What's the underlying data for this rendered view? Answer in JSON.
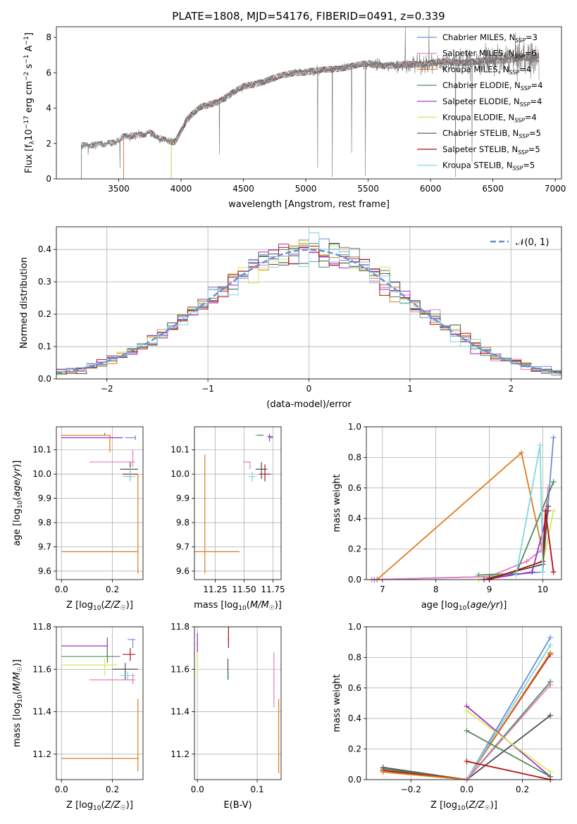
{
  "page_title": "PLATE=1808, MJD=54176, FIBERID=0491, z=0.339",
  "colors": {
    "Chabrier MILES": "#6a8fd8",
    "Salpeter MILES": "#e47fbf",
    "Kroupa MILES": "#e07b20",
    "Chabrier ELODIE": "#4f8a5c",
    "Salpeter ELODIE": "#9b30c7",
    "Kroupa ELODIE": "#d6ea5a",
    "Chabrier STELIB": "#505050",
    "Salpeter STELIB": "#b01010",
    "Kroupa STELIB": "#7fd8e0",
    "gaussian": "#6a8fd8",
    "spectrum": "#777777"
  },
  "chart_data": [
    {
      "id": "spectrum",
      "type": "line",
      "title": "PLATE=1808, MJD=54176, FIBERID=0491, z=0.339",
      "xlabel": "wavelength [Angstrom, rest frame]",
      "ylabel": "Flux [f_λ 10^-17 erg cm^-2 s^-1 A^-1]",
      "xlim": [
        3000,
        7050
      ],
      "ylim": [
        0,
        8.6
      ],
      "xticks": [
        3500,
        4000,
        4500,
        5000,
        5500,
        6000,
        6500,
        7000
      ],
      "yticks": [
        0,
        2,
        4,
        6,
        8
      ],
      "grid": false,
      "legend_position": "top-right",
      "legend": [
        {
          "label": "Chabrier MILES",
          "nssp": "3",
          "key": "Chabrier MILES"
        },
        {
          "label": "Salpeter MILES",
          "nssp": "6",
          "key": "Salpeter MILES"
        },
        {
          "label": "Kroupa MILES",
          "nssp": "4",
          "key": "Kroupa MILES"
        },
        {
          "label": "Chabrier ELODIE",
          "nssp": "4",
          "key": "Chabrier ELODIE"
        },
        {
          "label": "Salpeter ELODIE",
          "nssp": "4",
          "key": "Salpeter ELODIE"
        },
        {
          "label": "Kroupa ELODIE",
          "nssp": "4",
          "key": "Kroupa ELODIE"
        },
        {
          "label": "Chabrier STELIB",
          "nssp": "5",
          "key": "Chabrier STELIB"
        },
        {
          "label": "Salpeter STELIB",
          "nssp": "5",
          "key": "Salpeter STELIB"
        },
        {
          "label": "Kroupa STELIB",
          "nssp": "5",
          "key": "Kroupa STELIB"
        }
      ],
      "data_range": [
        3200,
        6870
      ],
      "continuum": [
        [
          3200,
          1.85
        ],
        [
          3350,
          2.0
        ],
        [
          3450,
          2.0
        ],
        [
          3550,
          2.4
        ],
        [
          3650,
          2.5
        ],
        [
          3750,
          2.6
        ],
        [
          3850,
          2.2
        ],
        [
          3950,
          2.1
        ],
        [
          4050,
          3.4
        ],
        [
          4150,
          4.0
        ],
        [
          4300,
          4.4
        ],
        [
          4500,
          5.2
        ],
        [
          4700,
          5.6
        ],
        [
          4900,
          6.0
        ],
        [
          5100,
          6.1
        ],
        [
          5300,
          6.3
        ],
        [
          5500,
          6.5
        ],
        [
          5700,
          6.4
        ],
        [
          5900,
          6.5
        ],
        [
          6100,
          6.6
        ],
        [
          6300,
          6.6
        ],
        [
          6500,
          6.7
        ],
        [
          6700,
          6.8
        ],
        [
          6870,
          6.8
        ]
      ],
      "model_starts": {
        "MILES": 3540,
        "ELODIE": 3920,
        "STELIB": 3200
      }
    },
    {
      "id": "residual_hist",
      "type": "histogram",
      "xlabel": "(data-model)/error",
      "ylabel": "Normed distribution",
      "xlim": [
        -2.5,
        2.5
      ],
      "ylim": [
        0,
        0.47
      ],
      "xticks": [
        -2,
        -1,
        0,
        1,
        2
      ],
      "yticks": [
        0,
        0.1,
        0.2,
        0.3,
        0.4
      ],
      "grid": true,
      "legend": "𝒩(0, 1)",
      "legend_position": "top-right",
      "bin_width": 0.1,
      "series_keys": [
        "Chabrier MILES",
        "Salpeter MILES",
        "Kroupa MILES",
        "Chabrier ELODIE",
        "Salpeter ELODIE",
        "Kroupa ELODIE",
        "Chabrier STELIB",
        "Salpeter STELIB",
        "Kroupa STELIB"
      ]
    },
    {
      "id": "age_vs_Z",
      "type": "scatter",
      "xlabel": "Z [log10(Z/Z☉)]",
      "ylabel": "age  [log10(age/yr)]",
      "xlim": [
        -0.02,
        0.32
      ],
      "ylim": [
        9.565,
        10.195
      ],
      "xticks": [
        0.0,
        0.2
      ],
      "yticks": [
        9.6,
        9.7,
        9.8,
        9.9,
        10.0,
        10.1
      ],
      "grid": true,
      "points": [
        {
          "key": "Kroupa ELODIE",
          "x": 0.17,
          "y": 10.16,
          "ex": [
            0.17,
            0.0
          ],
          "ey": [
            0,
            0
          ]
        },
        {
          "key": "Chabrier ELODIE",
          "x": 0.17,
          "y": 10.16,
          "ex": [
            0.17,
            0.0
          ],
          "ey": [
            0,
            0.01
          ]
        },
        {
          "key": "Salpeter ELODIE",
          "x": 0.19,
          "y": 10.15,
          "ex": [
            0.19,
            0.05
          ],
          "ey": [
            0,
            0.01
          ]
        },
        {
          "key": "Kroupa MILES",
          "x": 0.19,
          "y": 10.16,
          "ex": [
            0.19,
            0.0
          ],
          "ey": [
            0.07,
            0
          ]
        },
        {
          "key": "Chabrier MILES",
          "x": 0.29,
          "y": 10.15,
          "ex": [
            0.04,
            0.0
          ],
          "ey": [
            0.01,
            0.01
          ]
        },
        {
          "key": "Salpeter MILES",
          "x": 0.28,
          "y": 10.05,
          "ex": [
            0.17,
            0.01
          ],
          "ey": [
            0.02,
            0.05
          ]
        },
        {
          "key": "Chabrier STELIB",
          "x": 0.27,
          "y": 10.02,
          "ex": [
            0.04,
            0.03
          ],
          "ey": [
            0.04,
            0.03
          ]
        },
        {
          "key": "Salpeter STELIB",
          "x": 0.27,
          "y": 10.0,
          "ex": [
            0.03,
            0.03
          ],
          "ey": [
            0.03,
            0.04
          ]
        },
        {
          "key": "Kroupa STELIB",
          "x": 0.27,
          "y": 9.99,
          "ex": [
            0.03,
            0.02
          ],
          "ey": [
            0.02,
            0.04
          ]
        },
        {
          "key": "Kroupa MILES",
          "x": 0.3,
          "y": 9.68,
          "ex": [
            0.3,
            0.0
          ],
          "ey": [
            0.09,
            0.32
          ]
        }
      ]
    },
    {
      "id": "age_vs_mass",
      "type": "scatter",
      "xlabel": "mass [log10(M/M☉)]",
      "ylabel": "",
      "xlim": [
        11.07,
        11.82
      ],
      "ylim": [
        9.565,
        10.195
      ],
      "xticks": [
        11.25,
        11.5,
        11.75
      ],
      "yticks": [
        9.6,
        9.7,
        9.8,
        9.9,
        10.0,
        10.1
      ],
      "grid": true,
      "points": [
        {
          "key": "Kroupa ELODIE",
          "x": 11.62,
          "y": 10.16,
          "ex": [
            0.03,
            0.03
          ],
          "ey": [
            0.0,
            0.0
          ]
        },
        {
          "key": "Chabrier ELODIE",
          "x": 11.64,
          "y": 10.16,
          "ex": [
            0.03,
            0.03
          ],
          "ey": [
            0.0,
            0.0
          ]
        },
        {
          "key": "Salpeter ELODIE",
          "x": 11.72,
          "y": 10.155,
          "ex": [
            0.02,
            0.03
          ],
          "ey": [
            0.02,
            0.01
          ]
        },
        {
          "key": "Chabrier MILES",
          "x": 11.72,
          "y": 10.15,
          "ex": [
            0.01,
            0.03
          ],
          "ey": [
            0.0,
            0.0
          ]
        },
        {
          "key": "Salpeter MILES",
          "x": 11.55,
          "y": 10.05,
          "ex": [
            0.06,
            0.0
          ],
          "ey": [
            0.03,
            0.0
          ]
        },
        {
          "key": "Chabrier STELIB",
          "x": 11.65,
          "y": 10.02,
          "ex": [
            0.05,
            0.05
          ],
          "ey": [
            0.04,
            0.03
          ]
        },
        {
          "key": "Salpeter STELIB",
          "x": 11.68,
          "y": 10.0,
          "ex": [
            0.05,
            0.05
          ],
          "ey": [
            0.03,
            0.04
          ]
        },
        {
          "key": "Kroupa STELIB",
          "x": 11.57,
          "y": 9.99,
          "ex": [
            0.03,
            0.03
          ],
          "ey": [
            0.02,
            0.02
          ]
        },
        {
          "key": "Kroupa MILES",
          "x": 11.16,
          "y": 9.68,
          "ex": [
            0.1,
            0.3
          ],
          "ey": [
            0.09,
            0.4
          ]
        }
      ]
    },
    {
      "id": "mass_weight_vs_age",
      "type": "line",
      "xlabel": "age  [log10(age/yr)]",
      "ylabel": "mass weight",
      "xlim": [
        6.7,
        10.35
      ],
      "ylim": [
        0,
        1.0
      ],
      "xticks": [
        7,
        8,
        9,
        10
      ],
      "yticks": [
        0.0,
        0.2,
        0.4,
        0.6,
        0.8,
        1.0
      ],
      "grid": true,
      "series": [
        {
          "key": "Kroupa MILES",
          "x": [
            6.9,
            9.6,
            10.0,
            10.1
          ],
          "y": [
            0.0,
            0.83,
            0.18,
            0.48
          ]
        },
        {
          "key": "Chabrier MILES",
          "x": [
            6.85,
            9.0,
            10.0,
            10.2
          ],
          "y": [
            0.0,
            0.02,
            0.05,
            0.93
          ]
        },
        {
          "key": "Salpeter MILES",
          "x": [
            6.8,
            9.0,
            9.7,
            10.0,
            10.1
          ],
          "y": [
            0.0,
            0.02,
            0.12,
            0.2,
            0.6
          ]
        },
        {
          "key": "Chabrier ELODIE",
          "x": [
            8.8,
            9.5,
            10.2
          ],
          "y": [
            0.03,
            0.04,
            0.64
          ]
        },
        {
          "key": "Kroupa ELODIE",
          "x": [
            8.8,
            9.2,
            10.0,
            10.2
          ],
          "y": [
            0.0,
            0.03,
            0.1,
            0.45
          ]
        },
        {
          "key": "Salpeter ELODIE",
          "x": [
            8.9,
            9.8,
            10.1
          ],
          "y": [
            0.0,
            0.05,
            0.45
          ]
        },
        {
          "key": "Chabrier STELIB",
          "x": [
            9.0,
            10.0,
            10.1
          ],
          "y": [
            0.01,
            0.1,
            0.48
          ]
        },
        {
          "key": "Salpeter STELIB",
          "x": [
            9.0,
            10.0,
            10.05,
            10.2
          ],
          "y": [
            0.0,
            0.12,
            0.45,
            0.05
          ]
        },
        {
          "key": "Kroupa STELIB",
          "x": [
            9.5,
            9.95,
            10.0
          ],
          "y": [
            0.03,
            0.88,
            0.05
          ]
        }
      ]
    },
    {
      "id": "mass_vs_Z",
      "type": "scatter",
      "xlabel": "Z [log10(Z/Z☉)]",
      "ylabel": "mass [log10(M/M☉)]",
      "xlim": [
        -0.02,
        0.32
      ],
      "ylim": [
        11.08,
        11.8
      ],
      "xticks": [
        0.0,
        0.2
      ],
      "yticks": [
        11.2,
        11.4,
        11.6,
        11.8
      ],
      "grid": true,
      "points": [
        {
          "key": "Salpeter ELODIE",
          "x": 0.18,
          "y": 11.71,
          "ex": [
            0.18,
            0.0
          ],
          "ey": [
            0.05,
            0.04
          ]
        },
        {
          "key": "Chabrier MILES",
          "x": 0.28,
          "y": 11.74,
          "ex": [
            0.02,
            0.01
          ],
          "ey": [
            0.04,
            0.0
          ]
        },
        {
          "key": "Salpeter STELIB",
          "x": 0.27,
          "y": 11.67,
          "ex": [
            0.03,
            0.02
          ],
          "ey": [
            0.03,
            0.03
          ]
        },
        {
          "key": "Chabrier ELODIE",
          "x": 0.18,
          "y": 11.66,
          "ex": [
            0.18,
            0.05
          ],
          "ey": [
            0.03,
            0.04
          ]
        },
        {
          "key": "Chabrier STELIB",
          "x": 0.25,
          "y": 11.6,
          "ex": [
            0.05,
            0.05
          ],
          "ey": [
            0.05,
            0.03
          ]
        },
        {
          "key": "Kroupa ELODIE",
          "x": 0.17,
          "y": 11.62,
          "ex": [
            0.17,
            0.05
          ],
          "ey": [
            0.05,
            0.03
          ]
        },
        {
          "key": "Kroupa STELIB",
          "x": 0.26,
          "y": 11.57,
          "ex": [
            0.03,
            0.03
          ],
          "ey": [
            0.02,
            0.02
          ]
        },
        {
          "key": "Salpeter MILES",
          "x": 0.28,
          "y": 11.55,
          "ex": [
            0.17,
            0.01
          ],
          "ey": [
            0.02,
            0.03
          ]
        },
        {
          "key": "Kroupa MILES",
          "x": 0.3,
          "y": 11.18,
          "ex": [
            0.3,
            0.0
          ],
          "ey": [
            0.06,
            0.28
          ]
        }
      ]
    },
    {
      "id": "mass_vs_EBV",
      "type": "scatter",
      "xlabel": "E(B-V)",
      "ylabel": "",
      "xlim": [
        -0.005,
        0.14
      ],
      "ylim": [
        11.08,
        11.8
      ],
      "xticks": [
        0.0,
        0.1
      ],
      "yticks": [
        11.2,
        11.4,
        11.6,
        11.8
      ],
      "grid": true,
      "points": [
        {
          "key": "Salpeter ELODIE",
          "x": 0.0,
          "y": 11.72,
          "ex": [
            0,
            0
          ],
          "ey": [
            0.04,
            0.05
          ]
        },
        {
          "key": "Kroupa ELODIE",
          "x": 0.0,
          "y": 11.62,
          "ex": [
            0,
            0
          ],
          "ey": [
            0.06,
            0.06
          ]
        },
        {
          "key": "Salpeter STELIB",
          "x": 0.052,
          "y": 11.74,
          "ex": [
            0,
            0
          ],
          "ey": [
            0.04,
            0.06
          ]
        },
        {
          "key": "Chabrier STELIB",
          "x": 0.051,
          "y": 11.6,
          "ex": [
            0,
            0
          ],
          "ey": [
            0.05,
            0.05
          ]
        },
        {
          "key": "Kroupa STELIB",
          "x": 0.052,
          "y": 11.57,
          "ex": [
            0,
            0
          ],
          "ey": [
            0.02,
            0.02
          ]
        },
        {
          "key": "Salpeter MILES",
          "x": 0.128,
          "y": 11.55,
          "ex": [
            0,
            0
          ],
          "ey": [
            0.13,
            0.13
          ]
        },
        {
          "key": "Kroupa MILES",
          "x": 0.136,
          "y": 11.28,
          "ex": [
            0,
            0
          ],
          "ey": [
            0.17,
            0.18
          ]
        }
      ]
    },
    {
      "id": "mass_weight_vs_Z",
      "type": "line",
      "xlabel": "Z [log10(Z/Z☉)]",
      "ylabel": "mass weight",
      "xlim": [
        -0.36,
        0.34
      ],
      "ylim": [
        0,
        1.0
      ],
      "xticks": [
        -0.2,
        0.0,
        0.2
      ],
      "yticks": [
        0.0,
        0.2,
        0.4,
        0.6,
        0.8,
        1.0
      ],
      "grid": true,
      "series": [
        {
          "key": "Chabrier STELIB",
          "x": [
            -0.3,
            0.0,
            0.3
          ],
          "y": [
            0.08,
            0.0,
            0.42
          ]
        },
        {
          "key": "Chabrier ELODIE",
          "x": [
            -0.3,
            0.0,
            0.3
          ],
          "y": [
            0.07,
            0.0,
            0.64
          ]
        },
        {
          "key": "Salpeter STELIB",
          "x": [
            -0.3,
            0.0,
            0.3
          ],
          "y": [
            0.06,
            0.0,
            0.82
          ]
        },
        {
          "key": "Kroupa MILES",
          "x": [
            -0.3,
            0.0,
            0.3
          ],
          "y": [
            0.05,
            0.0,
            0.83
          ]
        },
        {
          "key": "Chabrier MILES",
          "x": [
            0.0,
            0.3
          ],
          "y": [
            0.0,
            0.93
          ]
        },
        {
          "key": "Kroupa STELIB",
          "x": [
            0.0,
            0.3
          ],
          "y": [
            0.0,
            0.88
          ]
        },
        {
          "key": "Salpeter MILES",
          "x": [
            0.0,
            0.3
          ],
          "y": [
            0.0,
            0.62
          ]
        },
        {
          "key": "Salpeter ELODIE",
          "x": [
            0.0,
            0.3
          ],
          "y": [
            0.48,
            0.02
          ]
        },
        {
          "key": "Kroupa ELODIE",
          "x": [
            0.0,
            0.3
          ],
          "y": [
            0.45,
            0.05
          ]
        },
        {
          "key": "Chabrier ELODIE",
          "x": [
            0.0,
            0.3
          ],
          "y": [
            0.32,
            0.02
          ]
        },
        {
          "key": "Salpeter STELIB",
          "x": [
            0.0,
            0.3
          ],
          "y": [
            0.12,
            0.0
          ]
        }
      ]
    }
  ]
}
